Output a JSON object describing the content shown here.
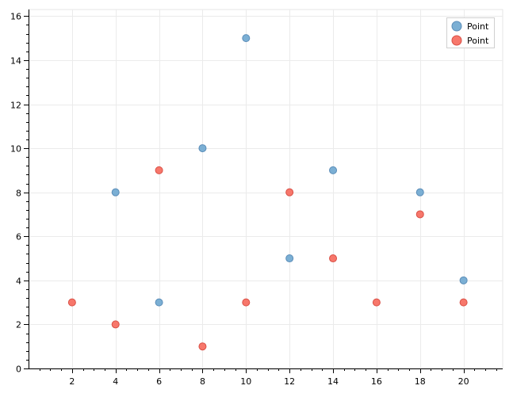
{
  "chart_data": {
    "type": "scatter",
    "title": "",
    "xlabel": "",
    "ylabel": "",
    "xlim": [
      0,
      21.8
    ],
    "ylim": [
      0,
      16.3
    ],
    "x_ticks": [
      2,
      4,
      6,
      8,
      10,
      12,
      14,
      16,
      18,
      20
    ],
    "y_ticks": [
      0,
      2,
      4,
      6,
      8,
      10,
      12,
      14,
      16
    ],
    "grid": true,
    "legend_position": "top-right",
    "series": [
      {
        "name": "Point",
        "color": "#7bafd4",
        "stroke": "#5b8db8",
        "points": [
          [
            4,
            8
          ],
          [
            6,
            3
          ],
          [
            8,
            10
          ],
          [
            10,
            15
          ],
          [
            12,
            5
          ],
          [
            14,
            9
          ],
          [
            18,
            8
          ],
          [
            20,
            4
          ]
        ]
      },
      {
        "name": "Point",
        "color": "#f7776b",
        "stroke": "#d95046",
        "points": [
          [
            2,
            3
          ],
          [
            4,
            2
          ],
          [
            6,
            9
          ],
          [
            8,
            1
          ],
          [
            10,
            3
          ],
          [
            12,
            8
          ],
          [
            14,
            5
          ],
          [
            16,
            3
          ],
          [
            18,
            7
          ],
          [
            20,
            3
          ]
        ]
      }
    ]
  }
}
